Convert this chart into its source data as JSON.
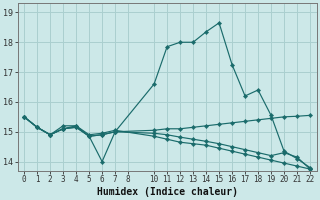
{
  "xlabel": "Humidex (Indice chaleur)",
  "background_color": "#cce8e8",
  "grid_color": "#aacfcf",
  "line_color": "#1a6b6b",
  "xlim": [
    -0.5,
    22.5
  ],
  "ylim": [
    13.7,
    19.3
  ],
  "xticks": [
    0,
    1,
    2,
    3,
    4,
    5,
    6,
    7,
    8,
    10,
    11,
    12,
    13,
    14,
    15,
    16,
    17,
    18,
    19,
    20,
    21,
    22
  ],
  "yticks": [
    14,
    15,
    16,
    17,
    18,
    19
  ],
  "lines": [
    {
      "x": [
        0,
        1,
        2,
        3,
        4,
        5,
        6,
        7,
        10,
        11,
        12,
        13,
        14,
        15,
        16,
        17,
        18,
        19,
        20,
        21,
        22
      ],
      "y": [
        15.5,
        15.15,
        14.9,
        15.2,
        15.2,
        14.85,
        14.0,
        15.0,
        16.6,
        17.85,
        18.0,
        18.0,
        18.35,
        18.65,
        17.25,
        16.2,
        16.4,
        15.55,
        14.35,
        14.1,
        13.8
      ]
    },
    {
      "x": [
        0,
        1,
        2,
        3,
        4,
        5,
        6,
        7,
        10,
        11,
        12,
        13,
        14,
        15,
        16,
        17,
        18,
        19,
        20,
        21,
        22
      ],
      "y": [
        15.5,
        15.15,
        14.9,
        15.1,
        15.15,
        14.85,
        14.9,
        15.0,
        15.05,
        15.1,
        15.1,
        15.15,
        15.2,
        15.25,
        15.3,
        15.35,
        15.4,
        15.45,
        15.5,
        15.52,
        15.55
      ]
    },
    {
      "x": [
        0,
        1,
        2,
        3,
        4,
        5,
        6,
        7,
        10,
        11,
        12,
        13,
        14,
        15,
        16,
        17,
        18,
        19,
        20,
        21,
        22
      ],
      "y": [
        15.5,
        15.15,
        14.9,
        15.1,
        15.15,
        14.85,
        14.9,
        15.0,
        14.95,
        14.9,
        14.82,
        14.75,
        14.68,
        14.6,
        14.5,
        14.4,
        14.3,
        14.2,
        14.3,
        14.15,
        13.75
      ]
    },
    {
      "x": [
        0,
        1,
        2,
        3,
        4,
        5,
        6,
        7,
        10,
        11,
        12,
        13,
        14,
        15,
        16,
        17,
        18,
        19,
        20,
        21,
        22
      ],
      "y": [
        15.5,
        15.15,
        14.9,
        15.1,
        15.2,
        14.9,
        14.95,
        15.05,
        14.85,
        14.75,
        14.65,
        14.6,
        14.55,
        14.45,
        14.35,
        14.25,
        14.15,
        14.05,
        13.95,
        13.85,
        13.75
      ]
    }
  ]
}
